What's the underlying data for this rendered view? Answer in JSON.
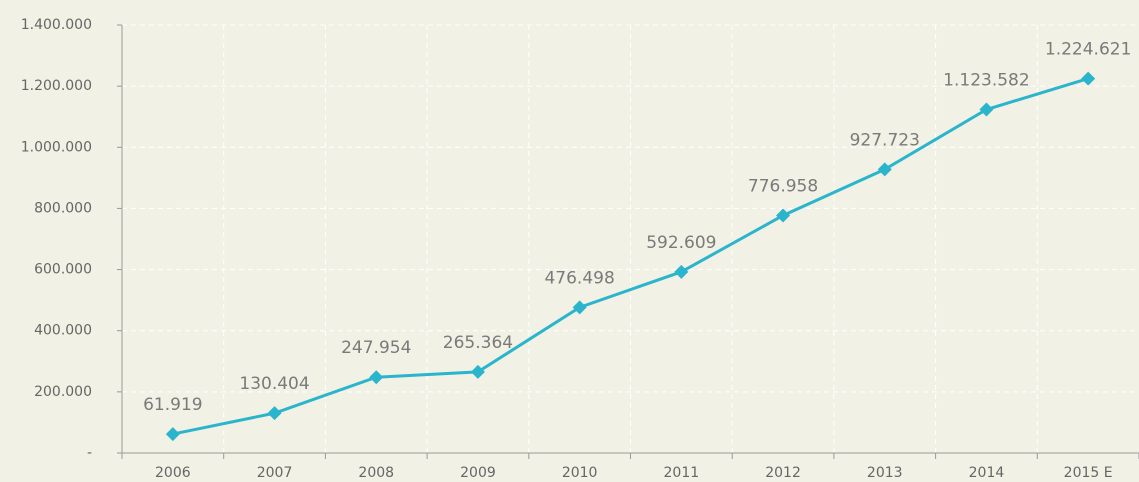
{
  "chart_data": {
    "type": "line",
    "categories": [
      "2006",
      "2007",
      "2008",
      "2009",
      "2010",
      "2011",
      "2012",
      "2013",
      "2014",
      "2015 E"
    ],
    "series": [
      {
        "color": "#2bb5cc",
        "values": [
          61919,
          130404,
          247954,
          265364,
          476498,
          592609,
          776958,
          927723,
          1123582,
          1224621
        ],
        "value_labels": [
          "61.919",
          "130.404",
          "247.954",
          "265.364",
          "476.498",
          "592.609",
          "776.958",
          "927.723",
          "1.123.582",
          "1.224.621"
        ]
      }
    ],
    "ylim": [
      0,
      1400000
    ],
    "yticks": [
      {
        "value": 0,
        "label": "-"
      },
      {
        "value": 200000,
        "label": "200.000"
      },
      {
        "value": 400000,
        "label": "400.000"
      },
      {
        "value": 600000,
        "label": "600.000"
      },
      {
        "value": 800000,
        "label": "800.000"
      },
      {
        "value": 1000000,
        "label": "1.000.000"
      },
      {
        "value": 1200000,
        "label": "1.200.000"
      },
      {
        "value": 1400000,
        "label": "1.400.000"
      }
    ],
    "grid": true
  }
}
